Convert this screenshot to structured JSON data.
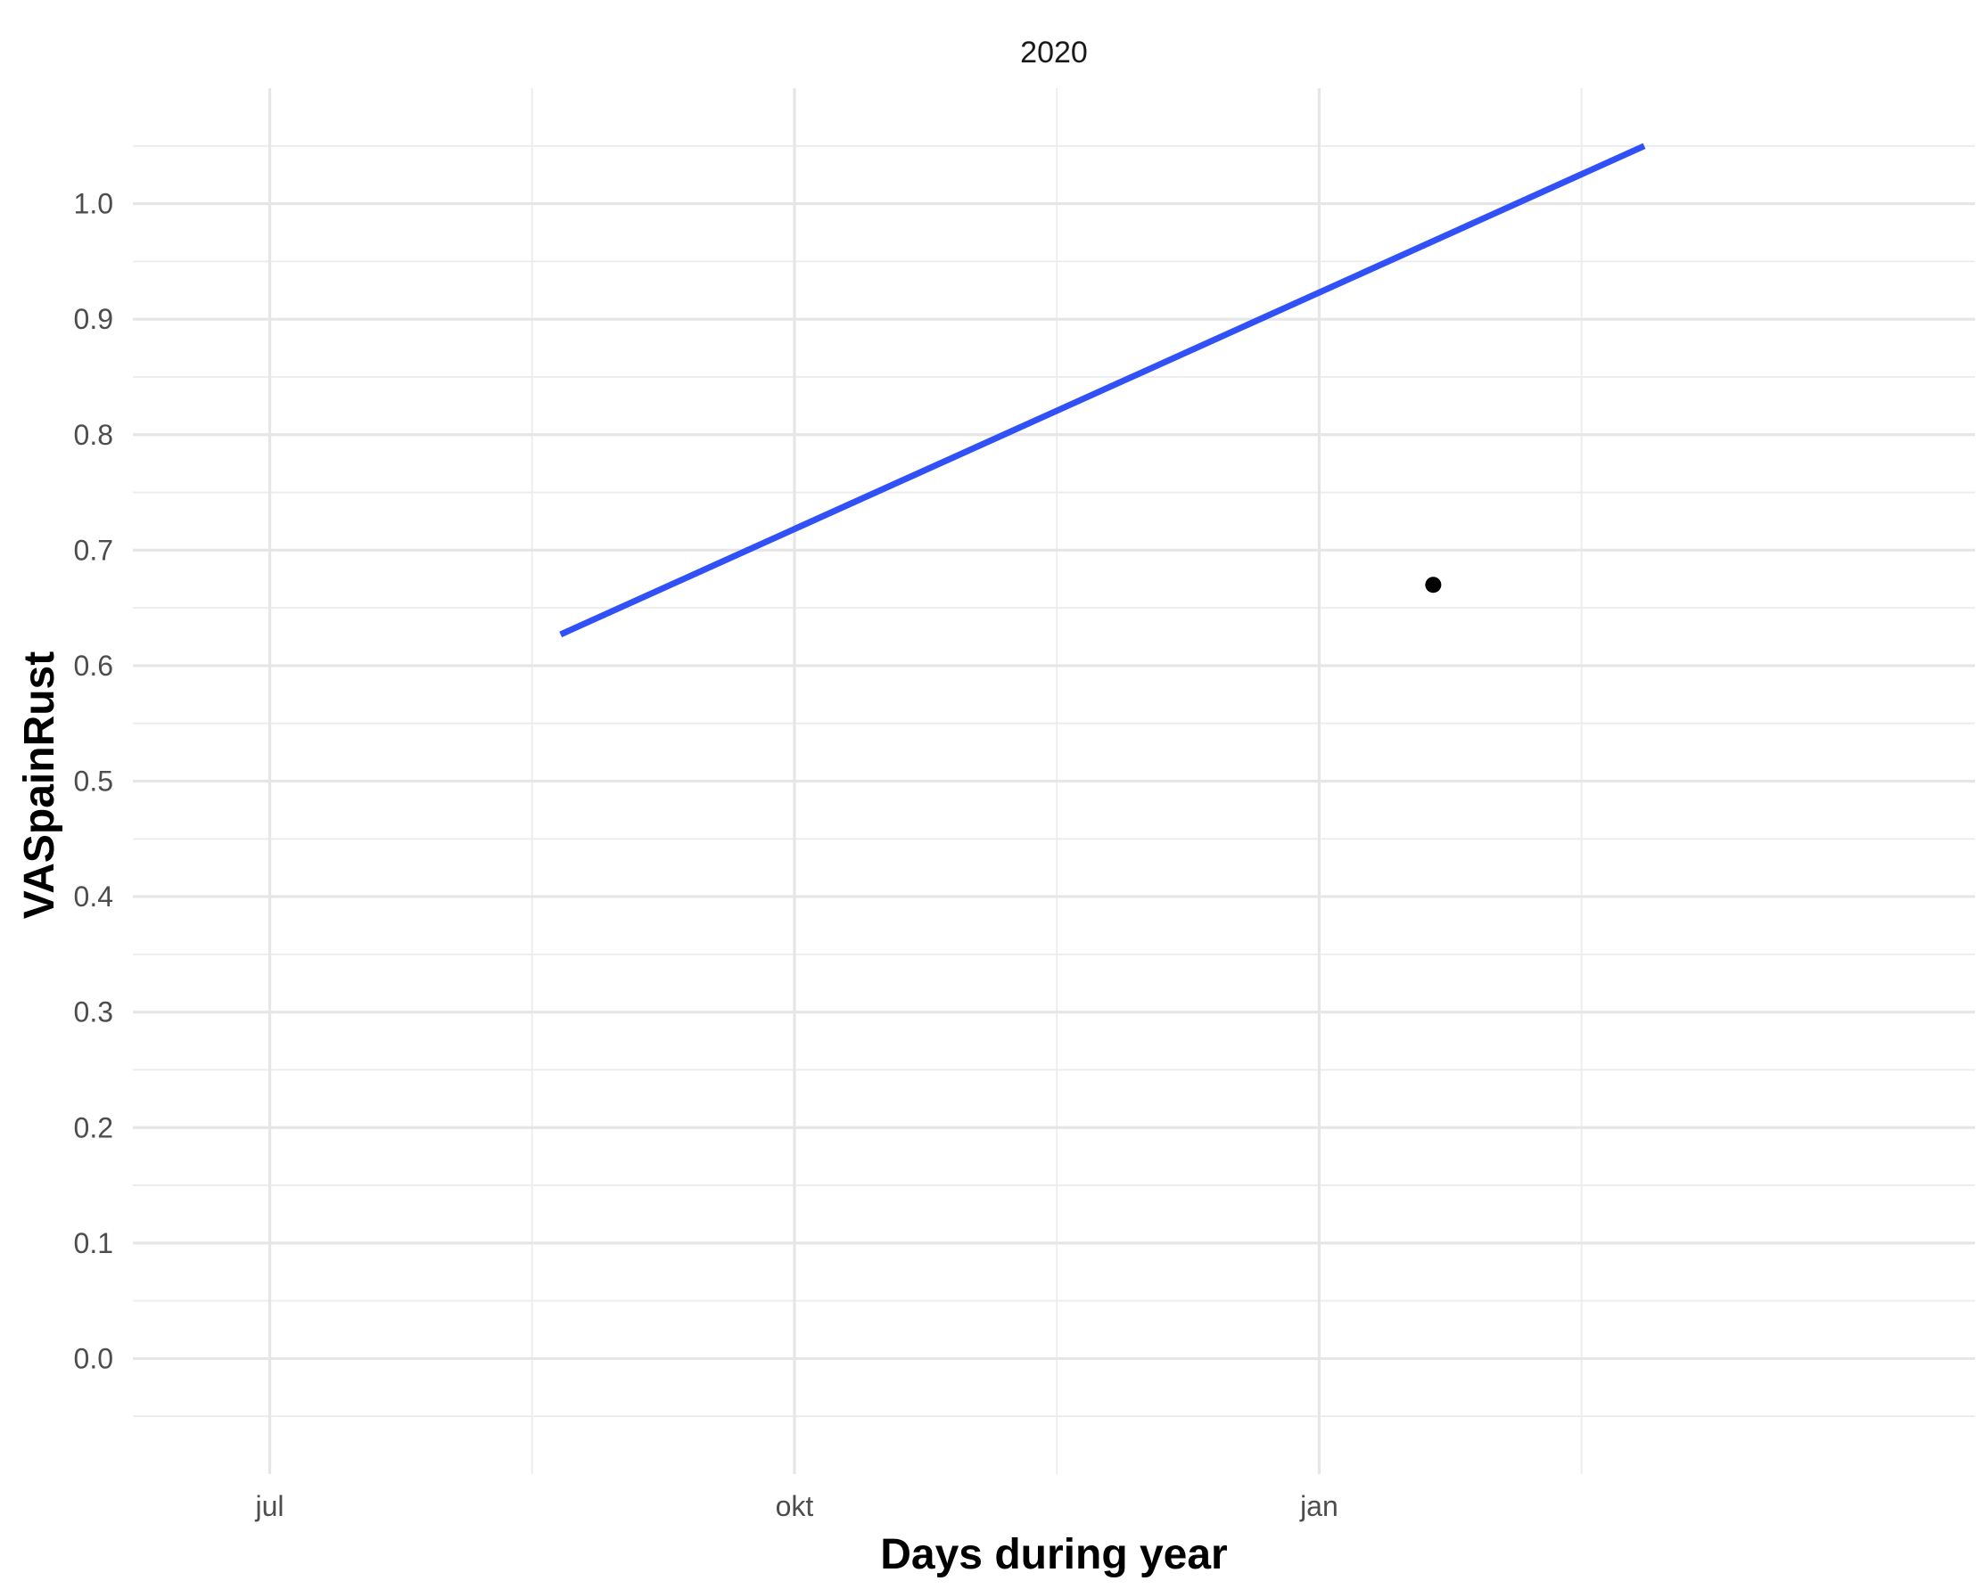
{
  "chart_data": {
    "type": "line",
    "facet_label": "2020",
    "xlabel": "Days during year",
    "ylabel": "VASpainRust",
    "x_axis": {
      "scale": "date",
      "range": [
        "2020-06-07",
        "2021-04-26"
      ],
      "ticks": [
        {
          "value": "2020-07-01",
          "label": "jul"
        },
        {
          "value": "2020-10-01",
          "label": "okt"
        },
        {
          "value": "2021-01-01",
          "label": "jan"
        }
      ],
      "minor_ticks": [
        "2020-08-16",
        "2020-11-16",
        "2021-02-16"
      ]
    },
    "y_axis": {
      "range": [
        -0.1,
        1.1
      ],
      "ticks": [
        0.0,
        0.1,
        0.2,
        0.3,
        0.4,
        0.5,
        0.6,
        0.7,
        0.8,
        0.9,
        1.0
      ],
      "tick_labels": [
        "0.0",
        "0.1",
        "0.2",
        "0.3",
        "0.4",
        "0.5",
        "0.6",
        "0.7",
        "0.8",
        "0.9",
        "1.0"
      ],
      "minor_ticks": [
        -0.05,
        0.05,
        0.15,
        0.25,
        0.35,
        0.45,
        0.55,
        0.65,
        0.75,
        0.85,
        0.95,
        1.05
      ]
    },
    "grid": true,
    "legend": "none",
    "series": [
      {
        "kind": "line",
        "color": "#3050f8",
        "points": [
          {
            "x": "2020-08-21",
            "y": 0.627
          },
          {
            "x": "2021-02-27",
            "y": 1.05
          }
        ]
      },
      {
        "kind": "point",
        "color": "#000000",
        "points": [
          {
            "x": "2021-01-21",
            "y": 0.67
          }
        ]
      }
    ]
  }
}
